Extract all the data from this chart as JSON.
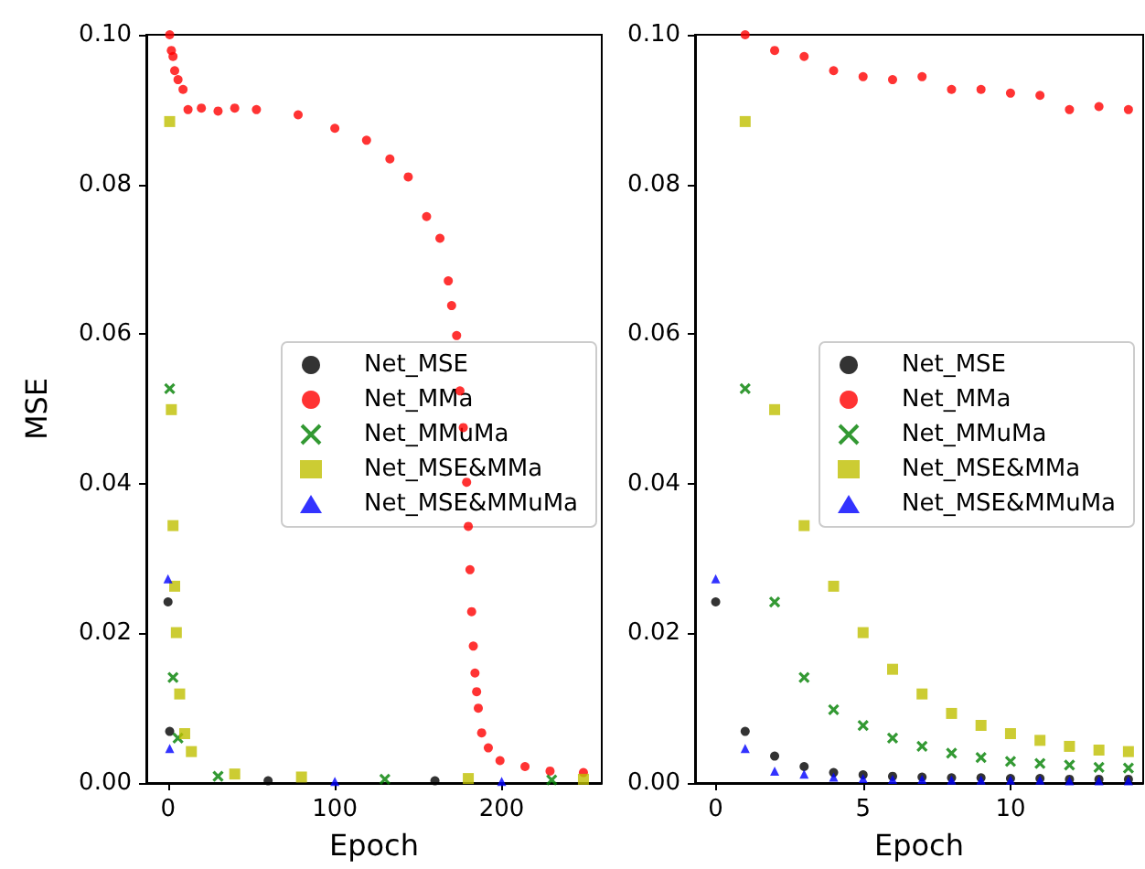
{
  "chart_data": [
    {
      "type": "scatter",
      "xlabel": "Epoch",
      "ylabel": "MSE",
      "xlim": [
        -13,
        260
      ],
      "xticks": [
        0,
        100,
        200
      ],
      "ylim": [
        0,
        0.1
      ],
      "yticks": [
        {
          "value": 0,
          "label": "0.00"
        },
        {
          "value": 0.02,
          "label": "0.02"
        },
        {
          "value": 0.04,
          "label": "0.04"
        },
        {
          "value": 0.06,
          "label": "0.06"
        },
        {
          "value": 0.08,
          "label": "0.08"
        },
        {
          "value": 0.1,
          "label": "0.10"
        }
      ],
      "grid": false,
      "legend": "right",
      "series": [
        {
          "name": "Net_MSE",
          "color": "#000000",
          "marker": "circle",
          "x": [
            0,
            1,
            60,
            160
          ],
          "values": [
            0.0242,
            0.0069,
            0.0003,
            0.0003
          ]
        },
        {
          "name": "Net_MMa",
          "color": "#ff0000",
          "marker": "circle",
          "x": [
            1,
            2,
            3,
            4,
            6,
            9,
            12,
            20,
            30,
            40,
            53,
            78,
            100,
            119,
            133,
            144,
            155,
            163,
            168,
            170,
            173,
            175,
            177,
            179,
            180,
            181,
            182,
            183,
            184,
            185,
            186,
            188,
            192,
            199,
            214,
            229,
            249
          ],
          "values": [
            0.1,
            0.0979,
            0.0971,
            0.0952,
            0.094,
            0.0927,
            0.09,
            0.0902,
            0.0898,
            0.0902,
            0.09,
            0.0893,
            0.0875,
            0.0859,
            0.0834,
            0.081,
            0.0757,
            0.0728,
            0.0671,
            0.0638,
            0.0598,
            0.0524,
            0.0475,
            0.0402,
            0.0343,
            0.0285,
            0.0229,
            0.0183,
            0.0147,
            0.0122,
            0.01,
            0.0067,
            0.0047,
            0.003,
            0.0022,
            0.0016,
            0.0014
          ]
        },
        {
          "name": "Net_MMuMa",
          "color": "#008000",
          "marker": "cross",
          "x": [
            1,
            3,
            6,
            30,
            130,
            230
          ],
          "values": [
            0.0527,
            0.0141,
            0.006,
            0.0009,
            0.0005,
            0.0004
          ]
        },
        {
          "name": "Net_MSE&MMa",
          "color": "#bfbf00",
          "marker": "square",
          "x": [
            1,
            2,
            3,
            4,
            5,
            7,
            10,
            14,
            40,
            80,
            180,
            249
          ],
          "values": [
            0.0884,
            0.0499,
            0.0344,
            0.0263,
            0.0201,
            0.0119,
            0.0066,
            0.0042,
            0.0012,
            0.0008,
            0.0006,
            0.0005
          ]
        },
        {
          "name": "Net_MSE&MMuMa",
          "color": "#0000ff",
          "marker": "triangle",
          "x": [
            0,
            1,
            100,
            200
          ],
          "values": [
            0.0273,
            0.0046,
            0.0002,
            0.0002
          ]
        }
      ]
    },
    {
      "type": "scatter",
      "xlabel": "Epoch",
      "xlim": [
        -0.7,
        14.5
      ],
      "xticks": [
        0,
        5,
        10
      ],
      "ylim": [
        0,
        0.1
      ],
      "yticks": [
        {
          "value": 0,
          "label": "0.00"
        },
        {
          "value": 0.02,
          "label": "0.02"
        },
        {
          "value": 0.04,
          "label": "0.04"
        },
        {
          "value": 0.06,
          "label": "0.06"
        },
        {
          "value": 0.08,
          "label": "0.08"
        },
        {
          "value": 0.1,
          "label": "0.10"
        }
      ],
      "grid": false,
      "legend": "right",
      "series": [
        {
          "name": "Net_MSE",
          "color": "#000000",
          "marker": "circle",
          "x": [
            0,
            1,
            2,
            3,
            4,
            5,
            6,
            7,
            8,
            9,
            10,
            11,
            12,
            13,
            14
          ],
          "values": [
            0.0242,
            0.0069,
            0.0036,
            0.0022,
            0.0014,
            0.0011,
            0.0009,
            0.0008,
            0.0007,
            0.0007,
            0.0006,
            0.0006,
            0.0005,
            0.0005,
            0.0005
          ]
        },
        {
          "name": "Net_MMa",
          "color": "#ff0000",
          "marker": "circle",
          "x": [
            1,
            2,
            3,
            4,
            5,
            6,
            7,
            8,
            9,
            10,
            11,
            12,
            13,
            14
          ],
          "values": [
            0.1,
            0.0979,
            0.0971,
            0.0952,
            0.0944,
            0.094,
            0.0944,
            0.0927,
            0.0927,
            0.0922,
            0.0919,
            0.09,
            0.0904,
            0.09
          ]
        },
        {
          "name": "Net_MMuMa",
          "color": "#008000",
          "marker": "cross",
          "x": [
            1,
            2,
            3,
            4,
            5,
            6,
            7,
            8,
            9,
            10,
            11,
            12,
            13,
            14
          ],
          "values": [
            0.0527,
            0.0242,
            0.0141,
            0.0098,
            0.0077,
            0.006,
            0.0049,
            0.004,
            0.0034,
            0.0029,
            0.0026,
            0.0024,
            0.0021,
            0.002
          ]
        },
        {
          "name": "Net_MSE&MMa",
          "color": "#bfbf00",
          "marker": "square",
          "x": [
            1,
            2,
            3,
            4,
            5,
            6,
            7,
            8,
            9,
            10,
            11,
            12,
            13,
            14
          ],
          "values": [
            0.0884,
            0.0499,
            0.0344,
            0.0263,
            0.0201,
            0.0152,
            0.0119,
            0.0093,
            0.0077,
            0.0066,
            0.0057,
            0.0049,
            0.0044,
            0.0042
          ]
        },
        {
          "name": "Net_MSE&MMuMa",
          "color": "#0000ff",
          "marker": "triangle",
          "x": [
            0,
            1,
            2,
            3,
            4,
            5,
            6,
            7,
            8,
            9,
            10,
            11,
            12,
            13,
            14
          ],
          "values": [
            0.0273,
            0.0046,
            0.0016,
            0.0012,
            0.0008,
            0.0006,
            0.0005,
            0.0005,
            0.0004,
            0.0004,
            0.0004,
            0.0004,
            0.0003,
            0.0003,
            0.0003
          ]
        }
      ]
    }
  ]
}
